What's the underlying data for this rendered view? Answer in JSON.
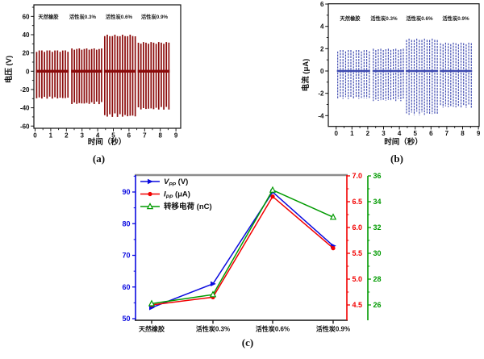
{
  "background": "#ffffff",
  "captions": {
    "a": "(a)",
    "b": "(b)",
    "c": "(c)"
  },
  "chart_data": [
    {
      "panel": "a",
      "type": "line",
      "subtype": "spike-train",
      "xlabel": "时间（秒）",
      "ylabel": "电压 (V)",
      "xlim": [
        -0.2,
        9.4
      ],
      "ylim": [
        -63,
        73
      ],
      "xticks": [
        0,
        1,
        2,
        3,
        4,
        5,
        6,
        7,
        8,
        9
      ],
      "yticks": [
        -60,
        -40,
        -20,
        0,
        20,
        40,
        60
      ],
      "color": "#8b0b0b",
      "annotations": [
        "天然橡胶",
        "活性炭0.3%",
        "活性炭0.6%",
        "活性炭0.9%"
      ],
      "groups": [
        {
          "label": "天然橡胶",
          "t_start": 0.1,
          "t_end": 2.1,
          "spikes": 13,
          "peak_pos": 23,
          "peak_neg": -30
        },
        {
          "label": "活性炭0.3%",
          "t_start": 2.35,
          "t_end": 4.25,
          "spikes": 13,
          "peak_pos": 25,
          "peak_neg": -36
        },
        {
          "label": "活性炭0.6%",
          "t_start": 4.45,
          "t_end": 6.4,
          "spikes": 13,
          "peak_pos": 40,
          "peak_neg": -50
        },
        {
          "label": "活性炭0.9%",
          "t_start": 6.6,
          "t_end": 8.55,
          "spikes": 13,
          "peak_pos": 32,
          "peak_neg": -42
        }
      ]
    },
    {
      "panel": "b",
      "type": "line",
      "subtype": "spike-train",
      "xlabel": "时间（秒）",
      "ylabel": "电流 (μA)",
      "xlim": [
        -0.5,
        9.05
      ],
      "ylim": [
        -5,
        6
      ],
      "xticks": [
        0,
        1,
        2,
        3,
        4,
        5,
        6,
        7,
        8,
        9
      ],
      "yticks": [
        -4,
        -2,
        0,
        2,
        4,
        6
      ],
      "color": "#3e4ab0",
      "annotations": [
        "天然橡胶",
        "活性炭0.3%",
        "活性炭0.6%",
        "活性炭0.9%"
      ],
      "groups": [
        {
          "label": "天然橡胶",
          "t_start": 0.1,
          "t_end": 2.1,
          "spikes": 13,
          "peak_pos": 1.9,
          "peak_neg": -2.5
        },
        {
          "label": "活性炭0.3%",
          "t_start": 2.35,
          "t_end": 4.25,
          "spikes": 13,
          "peak_pos": 2.0,
          "peak_neg": -2.7
        },
        {
          "label": "活性炭0.6%",
          "t_start": 4.45,
          "t_end": 6.4,
          "spikes": 13,
          "peak_pos": 2.9,
          "peak_neg": -3.95
        },
        {
          "label": "活性炭0.9%",
          "t_start": 6.6,
          "t_end": 8.55,
          "spikes": 13,
          "peak_pos": 2.55,
          "peak_neg": -3.3
        }
      ]
    },
    {
      "panel": "c",
      "type": "line",
      "categories": [
        "天然橡胶",
        "活性炭0.3%",
        "活性炭0.6%",
        "活性炭0.9%"
      ],
      "series": [
        {
          "name": "Vpp (V)",
          "axis": "left",
          "color": "#0a0adf",
          "marker": "right-triangle-filled",
          "values": [
            53.5,
            61,
            90,
            73
          ]
        },
        {
          "name": "Ipp (μA)",
          "axis": "right_red",
          "color": "#f20000",
          "marker": "circle-filled",
          "values": [
            4.5,
            4.65,
            6.6,
            5.6
          ]
        },
        {
          "name": "转移电荷 (nC)",
          "axis": "right_green",
          "color": "#009a00",
          "marker": "triangle-open",
          "values": [
            26.1,
            26.8,
            34.9,
            32.8
          ]
        }
      ],
      "axes": {
        "left": {
          "color": "#0a0adf",
          "ticks": [
            50,
            60,
            70,
            80,
            90
          ],
          "minor_ticks": [
            55,
            65,
            75,
            85,
            95
          ],
          "range": [
            50,
            95.8
          ]
        },
        "right_red": {
          "color": "#f20000",
          "ticks": [
            4.5,
            5.0,
            5.5,
            6.0,
            6.5,
            7.0
          ],
          "minor_ticks": [
            4.75,
            5.25,
            5.75,
            6.25,
            6.75
          ],
          "range": [
            4.5,
            7.0
          ]
        },
        "right_green": {
          "color": "#009a00",
          "ticks": [
            26,
            28,
            30,
            32,
            34,
            36
          ],
          "minor_ticks": [
            27,
            29,
            31,
            33,
            35
          ],
          "range": [
            26,
            36
          ]
        },
        "top_frame_color": "#8c8c8c",
        "bottom_color": "#111111"
      },
      "legend": [
        {
          "pre": "V",
          "sub": "PP",
          "post": " (V)"
        },
        {
          "pre": "I",
          "sub": "PP",
          "post": " (μA)"
        },
        {
          "pre": "转移电荷",
          "sub": "",
          "post": " (nC)"
        }
      ],
      "legend_position": "top-left",
      "grid": false
    }
  ]
}
